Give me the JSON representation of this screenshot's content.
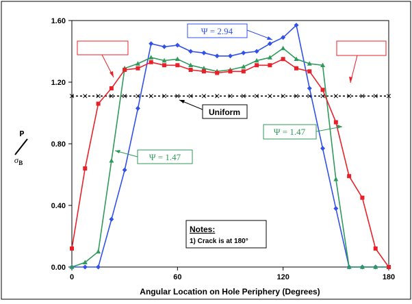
{
  "chart_data": {
    "type": "line",
    "title": "",
    "xlabel": "Angular Location on Hole Periphery (Degrees)",
    "ylabel_numerator": "P",
    "ylabel_denominator": "σ",
    "ylabel_denominator_sub": "B",
    "xlim": [
      0,
      180
    ],
    "ylim": [
      0,
      1.6
    ],
    "x_ticks": [
      0,
      60,
      120,
      180
    ],
    "x_tick_labels": [
      "0",
      "60",
      "120",
      "180"
    ],
    "y_ticks": [
      0,
      0.4,
      0.8,
      1.2,
      1.6
    ],
    "y_tick_labels": [
      "0.00",
      "0.40",
      "0.80",
      "1.20",
      "1.60"
    ],
    "grid": false,
    "series": [
      {
        "name": "Ψ = 2.94",
        "color": "#3050e8",
        "marker": "diamond",
        "x": [
          0,
          7.5,
          15,
          22.5,
          30,
          37.5,
          45,
          52.5,
          60,
          67.5,
          75,
          82.5,
          90,
          97.5,
          105,
          112.5,
          120,
          127.5,
          135,
          142.5,
          150,
          157.5,
          165,
          172.5,
          180
        ],
        "y": [
          0.0,
          0.0,
          0.0,
          0.31,
          0.63,
          1.03,
          1.45,
          1.43,
          1.44,
          1.4,
          1.39,
          1.37,
          1.37,
          1.39,
          1.4,
          1.45,
          1.49,
          1.57,
          1.16,
          0.77,
          0.38,
          0.0,
          0.0,
          0.0,
          0.0
        ]
      },
      {
        "name": "Ψ = 1.47",
        "color": "#2e9a5a",
        "marker": "triangle",
        "x": [
          0,
          7.5,
          15,
          22.5,
          30,
          37.5,
          45,
          52.5,
          60,
          67.5,
          75,
          82.5,
          90,
          97.5,
          105,
          112.5,
          120,
          127.5,
          135,
          142.5,
          150,
          157.5,
          165,
          172.5,
          180
        ],
        "y": [
          0.0,
          0.03,
          0.1,
          0.69,
          1.29,
          1.32,
          1.36,
          1.34,
          1.35,
          1.31,
          1.29,
          1.27,
          1.28,
          1.3,
          1.34,
          1.36,
          1.42,
          1.35,
          1.32,
          1.31,
          0.57,
          0.0,
          0.0,
          0.0,
          0.0
        ]
      },
      {
        "name": "",
        "color": "#e8202a",
        "marker": "square",
        "x": [
          0,
          7.5,
          15,
          22.5,
          30,
          37.5,
          45,
          52.5,
          60,
          67.5,
          75,
          82.5,
          90,
          97.5,
          105,
          112.5,
          120,
          127.5,
          135,
          142.5,
          150,
          157.5,
          165,
          172.5,
          180
        ],
        "y": [
          0.12,
          0.64,
          1.06,
          1.16,
          1.28,
          1.29,
          1.33,
          1.31,
          1.31,
          1.28,
          1.27,
          1.26,
          1.27,
          1.27,
          1.31,
          1.31,
          1.35,
          1.29,
          1.27,
          1.15,
          0.94,
          0.59,
          0.45,
          0.12,
          0.0
        ]
      },
      {
        "name": "Uniform",
        "color": "#000000",
        "marker": "x",
        "dashed": true,
        "x": [
          0,
          7.5,
          15,
          22.5,
          30,
          37.5,
          45,
          52.5,
          60,
          67.5,
          75,
          82.5,
          90,
          97.5,
          105,
          112.5,
          120,
          127.5,
          135,
          142.5,
          150,
          157.5,
          165,
          172.5,
          180
        ],
        "y": [
          1.11,
          1.11,
          1.11,
          1.11,
          1.11,
          1.11,
          1.11,
          1.11,
          1.11,
          1.11,
          1.11,
          1.11,
          1.11,
          1.11,
          1.11,
          1.11,
          1.11,
          1.11,
          1.11,
          1.11,
          1.11,
          1.11,
          1.11,
          1.11,
          1.11
        ]
      }
    ],
    "annotations": {
      "psi_294": "Ψ = 2.94",
      "psi_147_left": "Ψ = 1.47",
      "psi_147_right": "Ψ = 1.47",
      "uniform": "Uniform",
      "notes_title": "Notes:",
      "notes_line": "1)  Crack is at 180°"
    }
  }
}
